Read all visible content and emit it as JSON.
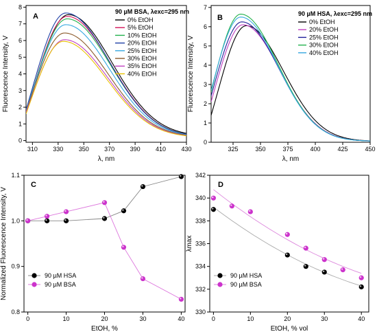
{
  "chart_data": [
    {
      "id": "A",
      "type": "line",
      "panel_label": "A",
      "legend_title": "90 µM BSA, λexc=295 nm",
      "xlabel": "λ, nm",
      "ylabel": "Fluorescence Intensity, V",
      "xlim": [
        305,
        430
      ],
      "ylim": [
        -0.1,
        8.1
      ],
      "xticks": [
        310,
        330,
        350,
        370,
        390,
        410,
        430
      ],
      "yticks": [
        0,
        1,
        2,
        3,
        4,
        5,
        6,
        7,
        8
      ],
      "legend_position": "top-right",
      "series": [
        {
          "name": "0% EtOH",
          "color": "#000000",
          "peak_x": 338,
          "peak": 7.55,
          "start": 1.7,
          "end": 0.25
        },
        {
          "name": "5% EtOH",
          "color": "#d4145a",
          "peak_x": 337,
          "peak": 7.45,
          "start": 1.75,
          "end": 0.22
        },
        {
          "name": "10% EtOH",
          "color": "#22b14c",
          "peak_x": 337,
          "peak": 7.3,
          "start": 1.8,
          "end": 0.22
        },
        {
          "name": "20% EtOH",
          "color": "#1f3fa6",
          "peak_x": 336,
          "peak": 7.65,
          "start": 1.85,
          "end": 0.22
        },
        {
          "name": "25% EtOH",
          "color": "#35a8e0",
          "peak_x": 336,
          "peak": 6.95,
          "start": 1.8,
          "end": 0.2
        },
        {
          "name": "30% EtOH",
          "color": "#8b5a2b",
          "peak_x": 335,
          "peak": 6.45,
          "start": 1.75,
          "end": 0.2
        },
        {
          "name": "35% EtOH",
          "color": "#c040c0",
          "peak_x": 335,
          "peak": 6.05,
          "start": 1.7,
          "end": 0.18
        },
        {
          "name": "40% EtOH",
          "color": "#e8c200",
          "peak_x": 334,
          "peak": 5.95,
          "start": 1.6,
          "end": 0.18
        }
      ]
    },
    {
      "id": "B",
      "type": "line",
      "panel_label": "B",
      "legend_title": "90 µM HSA, λexc=295 nm",
      "xlabel": "λ, nm",
      "ylabel": "Fluorescence Intensity, V",
      "xlim": [
        305,
        450
      ],
      "ylim": [
        0,
        7.1
      ],
      "xticks": [
        325,
        350,
        375,
        400,
        425,
        450
      ],
      "yticks": [
        0,
        1,
        2,
        3,
        4,
        5,
        6,
        7
      ],
      "legend_position": "top-right",
      "series": [
        {
          "name": "0% EtOH",
          "color": "#000000",
          "peak_x": 337,
          "peak": 6.05,
          "start": 1.4,
          "end": 0.05
        },
        {
          "name": "20% EtOH",
          "color": "#c040c0",
          "peak_x": 334,
          "peak": 6.1,
          "start": 2.1,
          "end": 0.05
        },
        {
          "name": "25% EtOH",
          "color": "#1f1f9a",
          "peak_x": 333,
          "peak": 6.25,
          "start": 2.4,
          "end": 0.05
        },
        {
          "name": "30% EtOH",
          "color": "#22b14c",
          "peak_x": 332,
          "peak": 6.65,
          "start": 2.6,
          "end": 0.05
        },
        {
          "name": "40% EtOH",
          "color": "#35a8e0",
          "peak_x": 332,
          "peak": 6.5,
          "start": 2.7,
          "end": 0.05
        }
      ]
    },
    {
      "id": "C",
      "type": "scatter",
      "panel_label": "C",
      "xlabel": "EtOH, %",
      "ylabel": "Normalized Fluorescence Intensity, V",
      "xlim": [
        -1,
        41
      ],
      "ylim": [
        0.8,
        1.1
      ],
      "xticks": [
        0,
        10,
        20,
        30,
        40
      ],
      "yticks": [
        0.8,
        0.9,
        1.0,
        1.1
      ],
      "legend_position": "bottom-left",
      "series": [
        {
          "name": "90 µM HSA",
          "color": "#000000",
          "line": "#888888",
          "x": [
            0,
            5,
            10,
            20,
            25,
            30,
            40
          ],
          "y": [
            1.0,
            1.0,
            1.0,
            1.005,
            1.022,
            1.075,
            1.097
          ]
        },
        {
          "name": "90 µM BSA",
          "color": "#cc33cc",
          "line": "#dd77dd",
          "x": [
            0,
            5,
            10,
            20,
            25,
            30,
            40
          ],
          "y": [
            1.0,
            1.01,
            1.02,
            1.04,
            0.942,
            0.873,
            0.828
          ]
        }
      ]
    },
    {
      "id": "D",
      "type": "scatter",
      "panel_label": "D",
      "xlabel": "EtOH, % vol",
      "ylabel": "λmax",
      "xlim": [
        -1,
        42
      ],
      "ylim": [
        330,
        342
      ],
      "xticks": [
        0,
        10,
        20,
        30,
        40
      ],
      "yticks": [
        330,
        332,
        334,
        336,
        338,
        340,
        342
      ],
      "legend_position": "bottom-left",
      "series": [
        {
          "name": "90 µM HSA",
          "color": "#000000",
          "line": "#aaaaaa",
          "x": [
            0,
            20,
            25,
            30,
            40
          ],
          "y": [
            339,
            335,
            334,
            333.5,
            332.2
          ]
        },
        {
          "name": "90 µM BSA",
          "color": "#cc33cc",
          "line": "#dd88dd",
          "x": [
            0,
            5,
            10,
            20,
            25,
            30,
            35,
            40
          ],
          "y": [
            340,
            339.3,
            338.8,
            336.8,
            335.6,
            334.6,
            333.7,
            333
          ]
        }
      ]
    }
  ]
}
